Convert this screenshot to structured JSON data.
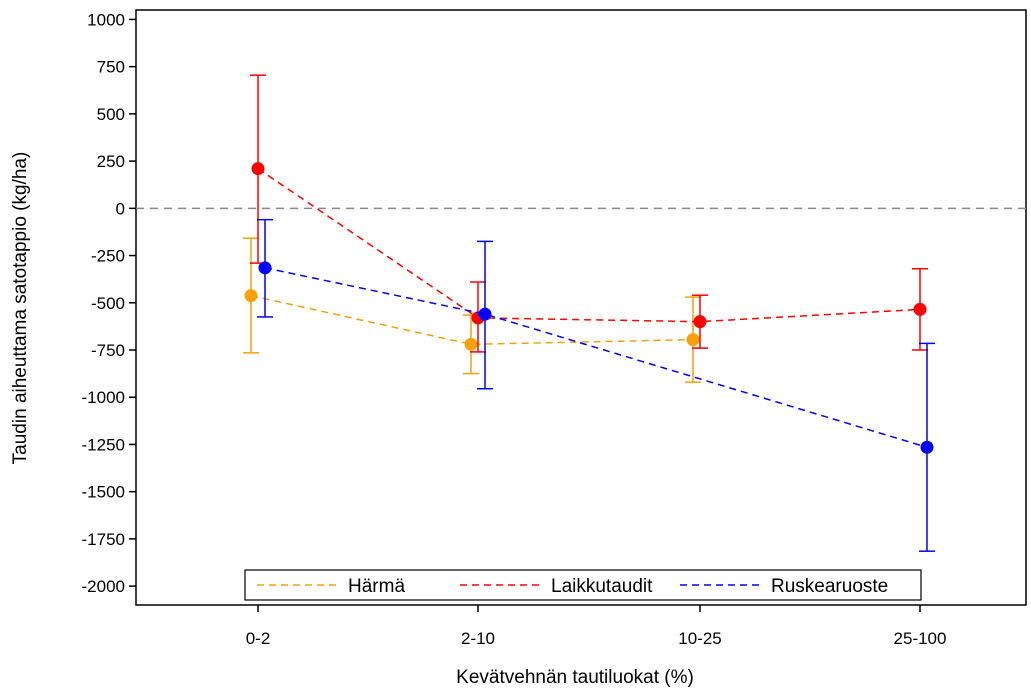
{
  "chart_data": {
    "type": "line",
    "title": "",
    "xlabel": "Kevätvehnän tautiluokat (%)",
    "ylabel": "Taudin aiheuttama satotappio (kg/ha)",
    "categories": [
      "0-2",
      "2-10",
      "10-25",
      "25-100"
    ],
    "ylim": [
      -2100,
      1050
    ],
    "yticks": [
      1000,
      750,
      500,
      250,
      0,
      -250,
      -500,
      -750,
      -1000,
      -1250,
      -1500,
      -1750,
      -2000
    ],
    "reference_line": 0,
    "grid": false,
    "legend_position": "bottom-inside",
    "series": [
      {
        "name": "Härmä",
        "color": "#f5a10a",
        "values": [
          -462,
          -720,
          -695,
          null
        ],
        "lower": [
          -765,
          -875,
          -920,
          null
        ],
        "upper": [
          -158,
          -565,
          -470,
          null
        ]
      },
      {
        "name": "Laikkutaudit",
        "color": "#ff0000",
        "values": [
          210,
          -580,
          -600,
          -535
        ],
        "lower": [
          -290,
          -760,
          -740,
          -750
        ],
        "upper": [
          705,
          -390,
          -460,
          -320
        ]
      },
      {
        "name": "Ruskearuoste",
        "color": "#0000ff",
        "values": [
          -315,
          -560,
          null,
          -1265
        ],
        "lower": [
          -575,
          -955,
          null,
          -1815
        ],
        "upper": [
          -60,
          -175,
          null,
          -715
        ]
      }
    ]
  }
}
